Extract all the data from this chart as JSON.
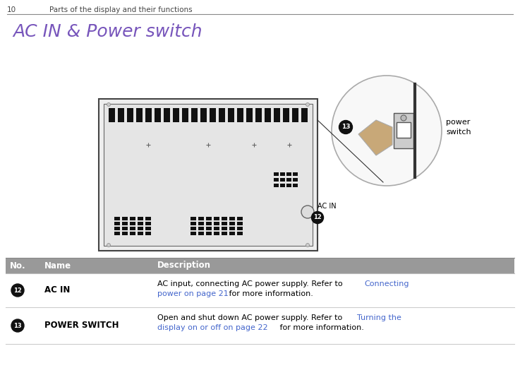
{
  "page_num": "10",
  "page_header": "Parts of the display and their functions",
  "section_title": "AC IN & Power switch",
  "title_color": "#7755bb",
  "header_line_color": "#000000",
  "bg_color": "#ffffff",
  "table_header_bg": "#999999",
  "table_header_text": "#ffffff",
  "table_row_divider": "#cccccc",
  "table_cols": [
    "No.",
    "Name",
    "Description"
  ],
  "rows": [
    {
      "num": "12",
      "name": "AC IN",
      "desc_plain1": "AC input, connecting AC power supply. Refer to ",
      "desc_link1": "Connecting",
      "desc_link2": "power on page 21",
      "desc_end": " for more information.",
      "link_color": "#4466cc"
    },
    {
      "num": "13",
      "name": "POWER SWITCH",
      "desc_plain1": "Open and shut down AC power supply. Refer to ",
      "desc_link1": "Turning the",
      "desc_link2": "display on or off on page 22",
      "desc_end": " for more information.",
      "link_color": "#4466cc"
    }
  ],
  "power_switch_label": "power\nswitch",
  "ac_in_label": "AC IN"
}
